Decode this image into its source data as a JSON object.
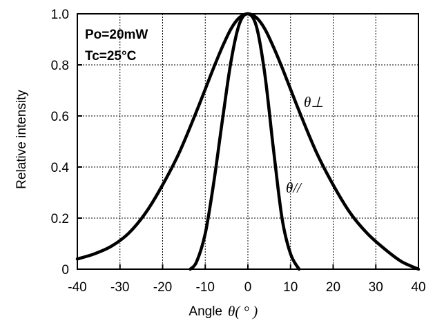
{
  "chart_data": {
    "type": "line",
    "xlabel": "Angle",
    "xlabel_symbol": "θ( ° )",
    "ylabel": "Relative intensity",
    "xlim": [
      -40,
      40
    ],
    "ylim": [
      0,
      1.0
    ],
    "x_ticks": [
      -40,
      -30,
      -20,
      -10,
      0,
      10,
      20,
      30,
      40
    ],
    "y_ticks": [
      0,
      0.2,
      0.4,
      0.6,
      0.8,
      1.0
    ],
    "y_tick_labels": [
      "0",
      "0.2",
      "0.4",
      "0.6",
      "0.8",
      "1.0"
    ],
    "grid": true,
    "annotations": [
      "Po=20mW",
      "Tc=25°C"
    ],
    "series": [
      {
        "name": "θ⊥",
        "x": [
          -40,
          -36,
          -32,
          -28,
          -24,
          -20,
          -16,
          -12,
          -8,
          -6,
          -4,
          -2,
          0,
          2,
          4,
          6,
          8,
          12,
          16,
          20,
          24,
          28,
          32,
          36,
          40
        ],
        "y": [
          0.04,
          0.06,
          0.09,
          0.14,
          0.22,
          0.33,
          0.46,
          0.62,
          0.79,
          0.87,
          0.94,
          0.985,
          1.0,
          0.985,
          0.94,
          0.87,
          0.79,
          0.62,
          0.46,
          0.33,
          0.22,
          0.14,
          0.08,
          0.03,
          0.0
        ]
      },
      {
        "name": "θ//",
        "x": [
          -13.5,
          -12,
          -10,
          -8,
          -6,
          -4,
          -2,
          0,
          2,
          4,
          6,
          8,
          10,
          12
        ],
        "y": [
          0.0,
          0.03,
          0.14,
          0.34,
          0.58,
          0.81,
          0.96,
          1.0,
          0.95,
          0.76,
          0.47,
          0.2,
          0.06,
          0.0
        ]
      }
    ]
  }
}
